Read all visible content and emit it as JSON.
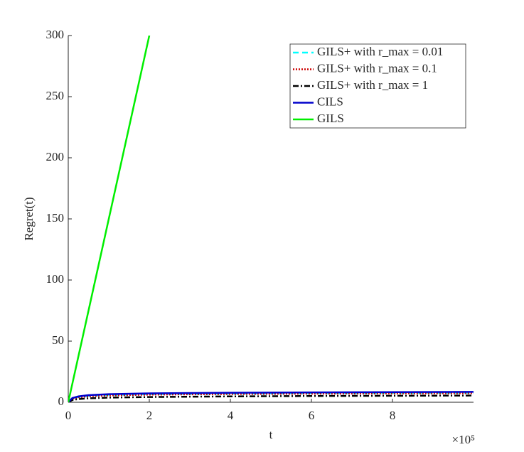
{
  "chart_data": {
    "type": "line",
    "xlabel": "t",
    "ylabel": "Regret(t)",
    "x_multiplier_label": "×10⁵",
    "xlim": [
      0,
      10
    ],
    "xticks": [
      0,
      2,
      4,
      6,
      8
    ],
    "ylim": [
      0,
      300
    ],
    "yticks": [
      0,
      50,
      100,
      150,
      200,
      250,
      300
    ],
    "legend": "upper right",
    "series": [
      {
        "name": "GILS+ with r_max = 0.01",
        "color": "#00ffff",
        "dash": "dashed",
        "x": [
          0,
          0.1,
          0.25,
          0.5,
          1,
          2,
          4,
          6,
          8,
          10
        ],
        "values": [
          0,
          3,
          4.3,
          5.2,
          6,
          6.6,
          7.1,
          7.4,
          7.6,
          7.8
        ]
      },
      {
        "name": "GILS+ with r_max = 0.1",
        "color": "#cc0000",
        "dash": "dotted",
        "x": [
          0,
          0.1,
          0.25,
          0.5,
          1,
          2,
          4,
          6,
          8,
          10
        ],
        "values": [
          0,
          2.8,
          4,
          4.9,
          5.6,
          6.2,
          6.7,
          7,
          7.2,
          7.4
        ]
      },
      {
        "name": "GILS+ with r_max = 1",
        "color": "#000000",
        "dash": "dashdot",
        "x": [
          0,
          0.1,
          0.25,
          0.5,
          1,
          2,
          4,
          6,
          8,
          10
        ],
        "values": [
          0,
          1.8,
          2.6,
          3.2,
          3.8,
          4.3,
          4.8,
          5.1,
          5.3,
          5.5
        ]
      },
      {
        "name": "CILS",
        "color": "#0000cc",
        "dash": "solid",
        "x": [
          0,
          0.1,
          0.25,
          0.5,
          1,
          2,
          4,
          6,
          8,
          10
        ],
        "values": [
          0,
          3.4,
          4.8,
          5.8,
          6.6,
          7.3,
          7.8,
          8.1,
          8.3,
          8.5
        ]
      },
      {
        "name": "GILS",
        "color": "#00ee00",
        "dash": "solid",
        "x": [
          0,
          2
        ],
        "values": [
          0,
          300
        ]
      }
    ]
  }
}
